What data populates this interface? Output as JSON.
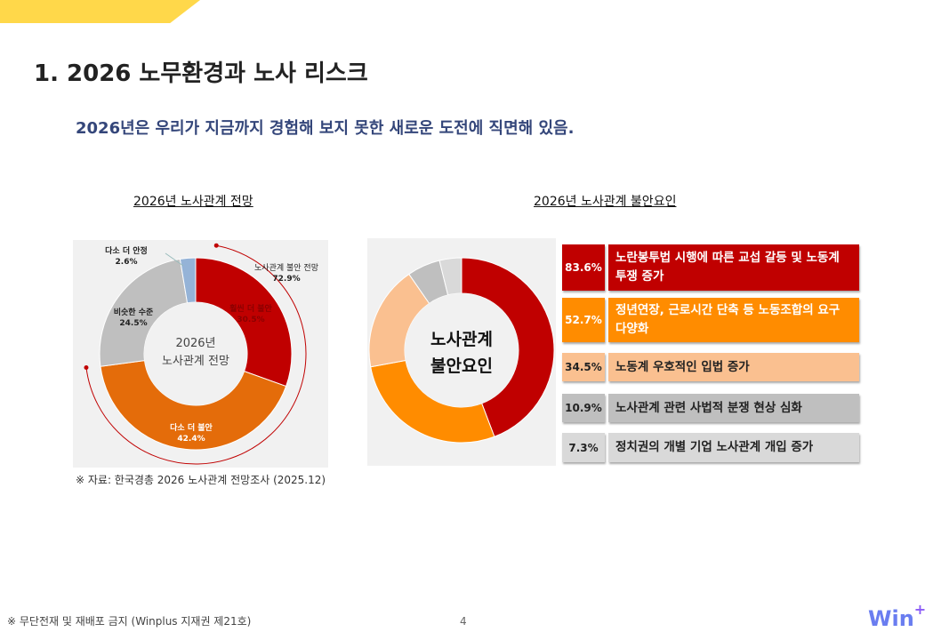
{
  "slide": {
    "title": "1. 2026 노무환경과 노사 리스크",
    "subtitle": "2026년은 우리가 지금까지 경험해 보지 못한 새로운 도전에 직면해 있음.",
    "source": "※ 자료: 한국경총 2026 노사관계 전망조사 (2025.12)",
    "footer": "※ 무단전재 및 재배포 금지 (Winplus 지재권 제21호)",
    "page": "4",
    "logo": "Win",
    "logo_plus": "+"
  },
  "chart_data": [
    {
      "type": "pie",
      "title": "2026년 노사관계 전망",
      "center_label": [
        "2026년",
        "노사관계 전망"
      ],
      "categories": [
        "훨씬 더 불안",
        "다소 더 불안",
        "비슷한 수준",
        "다소 더 안정"
      ],
      "values": [
        30.5,
        42.4,
        24.5,
        2.6
      ],
      "value_labels": [
        "30.5%",
        "42.4%",
        "24.5%",
        "2.6%"
      ],
      "colors": [
        "#c00000",
        "#e46c0a",
        "#bfbfbf",
        "#95b3d7"
      ],
      "annotation": {
        "label": "노사관계 불안 전망",
        "value": "72.9%"
      }
    },
    {
      "type": "pie",
      "title": "2026년 노사관계 불안요인",
      "center_label": [
        "노사관계",
        "불안요인"
      ],
      "categories": [
        "노란봉투법 시행에 따른 교섭 갈등 및 노동계 투쟁 증가",
        "정년연장, 근로시간 단축 등 노동조합의 요구 다양화",
        "노동계 우호적인 입법 증가",
        "노사관계 관련 사법적 분쟁 현상 심화",
        "정치권의 개별 기업 노사관계 개입 증가"
      ],
      "values": [
        83.6,
        52.7,
        34.5,
        10.9,
        7.3
      ],
      "value_labels": [
        "83.6%",
        "52.7%",
        "34.5%",
        "10.9%",
        "7.3%"
      ],
      "colors": [
        "#c00000",
        "#ff8c00",
        "#fac090",
        "#bfbfbf",
        "#d9d9d9"
      ],
      "text_colors": [
        "#fff",
        "#fff",
        "#222",
        "#222",
        "#222"
      ]
    }
  ]
}
